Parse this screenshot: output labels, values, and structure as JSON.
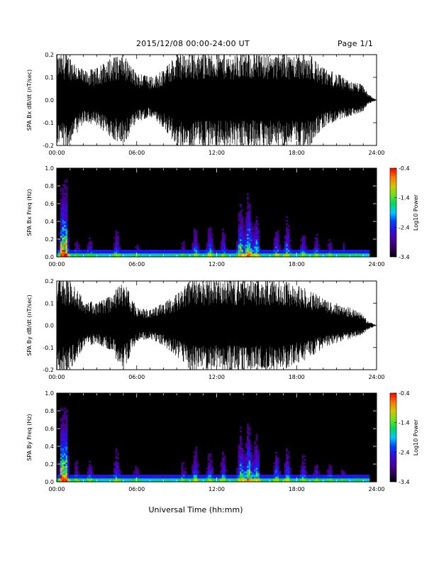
{
  "header": {
    "title": "2015/12/08  00:00-24:00 UT",
    "page": "Page 1/1"
  },
  "xlabel": "Universal Time (hh:mm)",
  "chart_data": [
    {
      "type": "line",
      "ylabel": "SPA Bx dB/dt (nT/sec)",
      "xlim": [
        0,
        24
      ],
      "ylim": [
        -0.2,
        0.2
      ],
      "x_ticks": [
        "00:00",
        "06:00",
        "12:00",
        "18:00",
        "24:00"
      ],
      "y_ticks": [
        "-0.2",
        "-0.1",
        "0.0",
        "0.1",
        "0.2"
      ],
      "color": "#000000",
      "x": [
        0.0,
        1.0,
        2.0,
        3.0,
        4.0,
        5.0,
        6.0,
        7.0,
        8.0,
        9.0,
        10.0,
        11.0,
        12.0,
        13.0,
        14.0,
        15.0,
        16.0,
        17.0,
        18.0,
        19.0,
        20.0,
        21.0,
        22.0,
        23.0,
        23.3,
        24.0
      ],
      "y_max": [
        0.2,
        0.2,
        0.13,
        0.14,
        0.18,
        0.2,
        0.12,
        0.1,
        0.13,
        0.2,
        0.2,
        0.2,
        0.2,
        0.2,
        0.2,
        0.2,
        0.2,
        0.2,
        0.2,
        0.2,
        0.14,
        0.12,
        0.08,
        0.07,
        0.03,
        0.0
      ],
      "y_min": [
        -0.2,
        -0.2,
        -0.1,
        -0.11,
        -0.16,
        -0.2,
        -0.1,
        -0.07,
        -0.12,
        -0.2,
        -0.2,
        -0.2,
        -0.2,
        -0.2,
        -0.2,
        -0.2,
        -0.2,
        -0.2,
        -0.2,
        -0.2,
        -0.12,
        -0.09,
        -0.07,
        -0.05,
        -0.02,
        0.0
      ]
    },
    {
      "type": "heatmap",
      "ylabel": "SPA Bx Freq (Hz)",
      "xlim": [
        0,
        24
      ],
      "ylim": [
        0.0,
        1.0
      ],
      "x_ticks": [
        "00:00",
        "06:00",
        "12:00",
        "18:00",
        "24:00"
      ],
      "y_ticks": [
        "0.0",
        "0.2",
        "0.4",
        "0.6",
        "0.8",
        "1.0"
      ],
      "colorbar": {
        "label": "Log10 Power",
        "min": -3.4,
        "max": -0.4,
        "ticks": [
          "-0.4",
          "-1.4",
          "-2.4",
          "-3.4"
        ]
      },
      "activity_hours": [
        0.5,
        0.6,
        1.5,
        2.5,
        4.5,
        6.0,
        9.5,
        10.4,
        11.5,
        12.5,
        13.8,
        14.4,
        15.0,
        16.5,
        17.3,
        18.5,
        19.5,
        20.5,
        21.5,
        22.5
      ],
      "activity_levels": [
        1.0,
        0.75,
        0.35,
        0.4,
        0.5,
        0.3,
        0.35,
        0.55,
        0.6,
        0.5,
        0.85,
        0.95,
        0.7,
        0.55,
        0.65,
        0.5,
        0.45,
        0.35,
        0.3,
        0.2
      ]
    },
    {
      "type": "line",
      "ylabel": "SPA By dB/dt (nT/sec)",
      "xlim": [
        0,
        24
      ],
      "ylim": [
        -0.2,
        0.2
      ],
      "x_ticks": [
        "00:00",
        "06:00",
        "12:00",
        "18:00",
        "24:00"
      ],
      "y_ticks": [
        "-0.2",
        "-0.1",
        "0.0",
        "0.1",
        "0.2"
      ],
      "color": "#000000",
      "x": [
        0.0,
        1.0,
        2.0,
        3.0,
        4.0,
        5.0,
        6.0,
        7.0,
        8.0,
        9.0,
        10.0,
        11.0,
        12.0,
        13.0,
        14.0,
        15.0,
        16.0,
        17.0,
        18.0,
        19.0,
        20.0,
        21.0,
        22.0,
        23.0,
        23.3,
        24.0
      ],
      "y_max": [
        0.2,
        0.2,
        0.12,
        0.1,
        0.13,
        0.2,
        0.08,
        0.07,
        0.1,
        0.14,
        0.2,
        0.2,
        0.2,
        0.2,
        0.2,
        0.2,
        0.2,
        0.2,
        0.18,
        0.16,
        0.12,
        0.1,
        0.08,
        0.05,
        0.02,
        0.0
      ],
      "y_min": [
        -0.2,
        -0.2,
        -0.1,
        -0.08,
        -0.11,
        -0.2,
        -0.07,
        -0.06,
        -0.09,
        -0.14,
        -0.2,
        -0.2,
        -0.2,
        -0.2,
        -0.2,
        -0.2,
        -0.2,
        -0.2,
        -0.17,
        -0.15,
        -0.1,
        -0.08,
        -0.06,
        -0.04,
        -0.02,
        0.0
      ]
    },
    {
      "type": "heatmap",
      "ylabel": "SPA By Freq (Hz)",
      "xlim": [
        0,
        24
      ],
      "ylim": [
        0.0,
        1.0
      ],
      "x_ticks": [
        "00:00",
        "06:00",
        "12:00",
        "18:00",
        "24:00"
      ],
      "y_ticks": [
        "0.0",
        "0.2",
        "0.4",
        "0.6",
        "0.8",
        "1.0"
      ],
      "colorbar": {
        "label": "Log10 Power",
        "min": -3.4,
        "max": -0.4,
        "ticks": [
          "-0.4",
          "-1.4",
          "-2.4",
          "-3.4"
        ]
      },
      "activity_hours": [
        0.5,
        0.6,
        1.5,
        2.5,
        4.5,
        6.0,
        9.5,
        10.4,
        11.5,
        12.5,
        13.8,
        14.4,
        15.0,
        16.5,
        17.3,
        18.5,
        19.5,
        20.5,
        21.5,
        22.5
      ],
      "activity_levels": [
        1.0,
        0.8,
        0.4,
        0.45,
        0.55,
        0.35,
        0.4,
        0.6,
        0.55,
        0.55,
        0.8,
        0.9,
        0.75,
        0.6,
        0.6,
        0.5,
        0.4,
        0.35,
        0.3,
        0.2
      ]
    }
  ]
}
